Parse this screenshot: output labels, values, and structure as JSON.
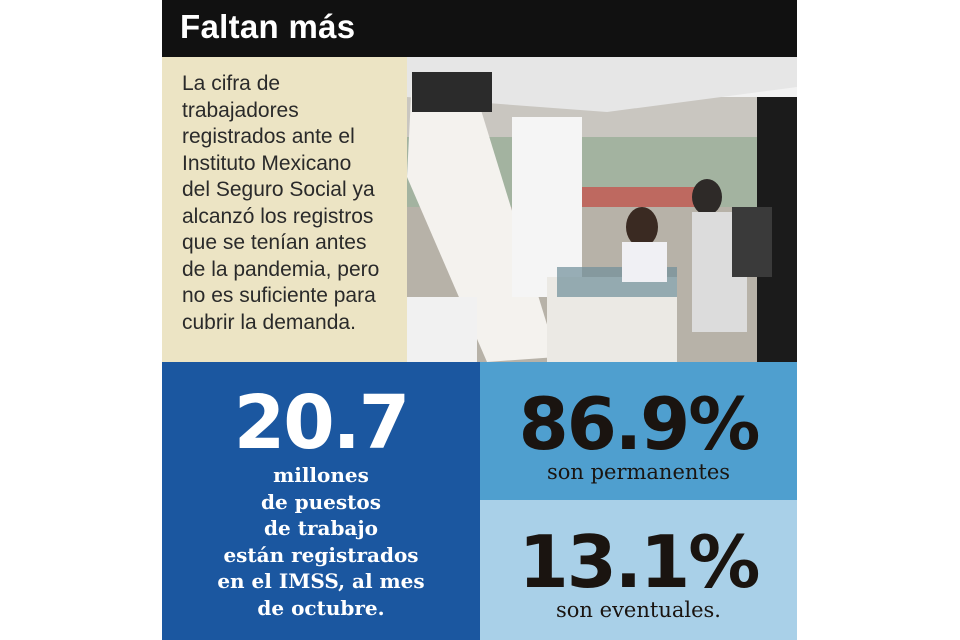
{
  "header": {
    "title": "Faltan más"
  },
  "intro": {
    "lines": [
      "La cifra de",
      "trabajadores",
      "registrados ante el",
      "Instituto Mexicano",
      "del Seguro Social ya",
      "alcanzó los registros",
      "que se tenían antes",
      "de la pandemia, pero",
      "no es suficiente para",
      "cubrir la demanda."
    ]
  },
  "stats": {
    "total": {
      "value": "20.7",
      "lines": [
        "millones",
        "de puestos",
        "de trabajo",
        "están registrados",
        "en el IMSS, al mes",
        "de octubre."
      ]
    },
    "permanent": {
      "value": "86.9%",
      "label": "son permanentes"
    },
    "eventual": {
      "value": "13.1%",
      "label": "son eventuales."
    }
  }
}
